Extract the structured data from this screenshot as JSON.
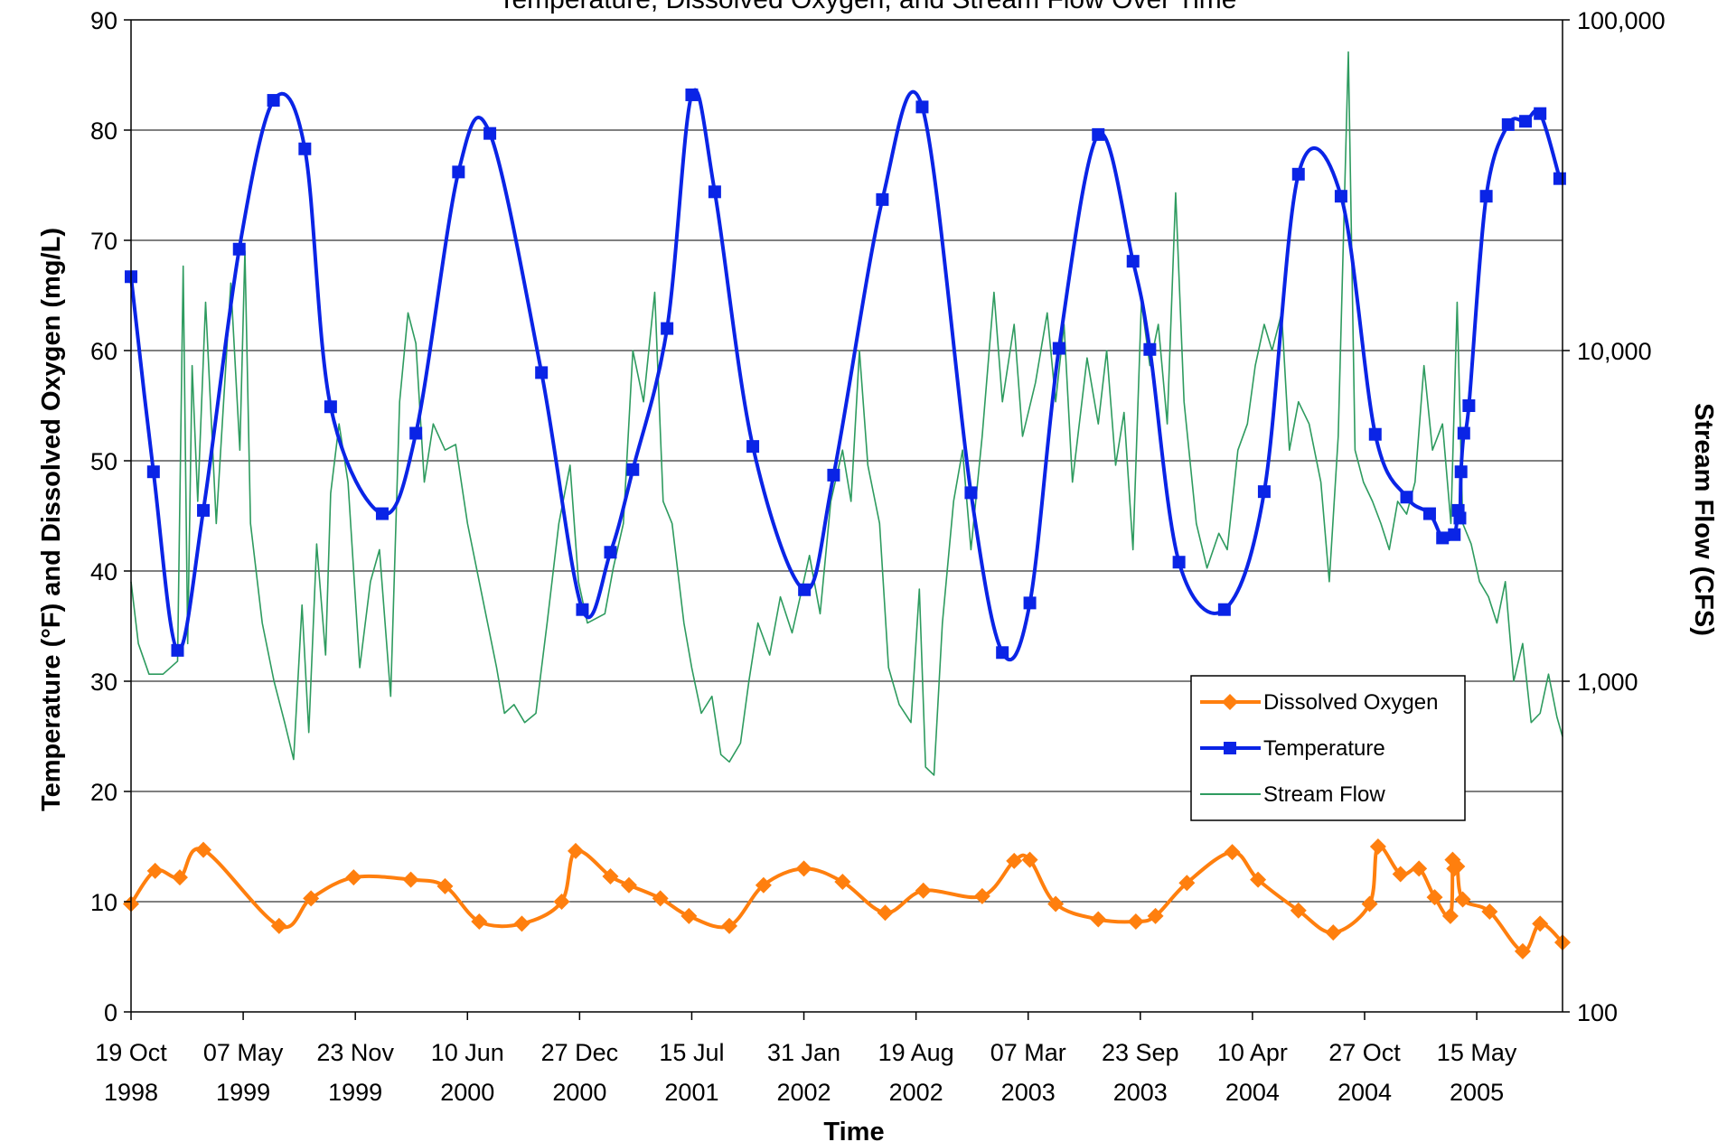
{
  "chart_data": {
    "type": "line",
    "title": "Temperature, Dissolved Oxygen, and Stream Flow Over Time",
    "xlabel": "Time",
    "ylabel_left": "Temperature (°F) and Dissolved Oxygen (mg/L)",
    "ylabel_right": "Stream Flow (CFS)",
    "xlim": [
      "1998-10-19",
      "2005-10-15"
    ],
    "ylim_left": [
      0,
      90
    ],
    "ylim_right": [
      100,
      100000
    ],
    "right_scale": "log",
    "grid": true,
    "legend_position": "lower-right",
    "x_ticks": [
      {
        "date": "1998-10-19",
        "line1": "19 Oct",
        "line2": "1998"
      },
      {
        "date": "1999-05-07",
        "line1": "07 May",
        "line2": "1999"
      },
      {
        "date": "1999-11-23",
        "line1": "23 Nov",
        "line2": "1999"
      },
      {
        "date": "2000-06-10",
        "line1": "10 Jun",
        "line2": "2000"
      },
      {
        "date": "2000-12-27",
        "line1": "27 Dec",
        "line2": "2000"
      },
      {
        "date": "2001-07-15",
        "line1": "15 Jul",
        "line2": "2001"
      },
      {
        "date": "2002-01-31",
        "line1": "31 Jan",
        "line2": "2002"
      },
      {
        "date": "2002-08-19",
        "line1": "19 Aug",
        "line2": "2002"
      },
      {
        "date": "2003-03-07",
        "line1": "07 Mar",
        "line2": "2003"
      },
      {
        "date": "2003-09-23",
        "line1": "23 Sep",
        "line2": "2003"
      },
      {
        "date": "2004-04-10",
        "line1": "10 Apr",
        "line2": "2004"
      },
      {
        "date": "2004-10-27",
        "line1": "27 Oct",
        "line2": "2004"
      },
      {
        "date": "2005-05-15",
        "line1": "15 May",
        "line2": "2005"
      }
    ],
    "y_left_ticks": [
      "0",
      "10",
      "20",
      "30",
      "40",
      "50",
      "60",
      "70",
      "80",
      "90"
    ],
    "y_right_ticks": [
      "100",
      "1,000",
      "10,000",
      "100,000"
    ],
    "series": [
      {
        "name": "Dissolved Oxygen",
        "axis": "left",
        "color": "#ff7f0e",
        "marker": "diamond",
        "points": [
          [
            "1998-10-19",
            9.8
          ],
          [
            "1998-12-01",
            12.8
          ],
          [
            "1999-01-14",
            12.2
          ],
          [
            "1999-02-25",
            14.7
          ],
          [
            "1999-07-10",
            7.8
          ],
          [
            "1999-09-05",
            10.3
          ],
          [
            "1999-11-20",
            12.2
          ],
          [
            "2000-03-01",
            12.0
          ],
          [
            "2000-05-01",
            11.4
          ],
          [
            "2000-07-01",
            8.2
          ],
          [
            "2000-09-15",
            8.0
          ],
          [
            "2000-11-25",
            10.0
          ],
          [
            "2000-12-20",
            14.6
          ],
          [
            "2001-02-20",
            12.3
          ],
          [
            "2001-03-25",
            11.5
          ],
          [
            "2001-05-20",
            10.3
          ],
          [
            "2001-07-10",
            8.7
          ],
          [
            "2001-09-20",
            7.8
          ],
          [
            "2001-11-20",
            11.5
          ],
          [
            "2002-01-31",
            13.0
          ],
          [
            "2002-04-10",
            11.8
          ],
          [
            "2002-06-25",
            9.0
          ],
          [
            "2002-09-01",
            11.0
          ],
          [
            "2002-12-15",
            10.5
          ],
          [
            "2003-02-10",
            13.7
          ],
          [
            "2003-03-10",
            13.8
          ],
          [
            "2003-04-25",
            9.8
          ],
          [
            "2003-07-10",
            8.4
          ],
          [
            "2003-09-15",
            8.2
          ],
          [
            "2003-10-20",
            8.7
          ],
          [
            "2003-12-15",
            11.7
          ],
          [
            "2004-03-05",
            14.5
          ],
          [
            "2004-04-20",
            12.0
          ],
          [
            "2004-07-01",
            9.2
          ],
          [
            "2004-09-01",
            7.2
          ],
          [
            "2004-11-05",
            9.8
          ],
          [
            "2004-11-20",
            15.0
          ],
          [
            "2004-12-30",
            12.5
          ],
          [
            "2005-02-01",
            13.0
          ],
          [
            "2005-03-01",
            10.4
          ],
          [
            "2005-03-29",
            8.7
          ],
          [
            "2005-04-02",
            13.8
          ],
          [
            "2005-04-05",
            13.0
          ],
          [
            "2005-04-10",
            13.2
          ],
          [
            "2005-04-20",
            10.2
          ],
          [
            "2005-06-07",
            9.1
          ],
          [
            "2005-08-05",
            5.5
          ],
          [
            "2005-09-05",
            8.0
          ],
          [
            "2005-10-15",
            6.3
          ]
        ]
      },
      {
        "name": "Temperature",
        "axis": "left",
        "color": "#0a24e6",
        "marker": "square",
        "points": [
          [
            "1998-10-19",
            66.7
          ],
          [
            "1998-11-28",
            49.0
          ],
          [
            "1999-01-10",
            32.8
          ],
          [
            "1999-02-25",
            45.5
          ],
          [
            "1999-04-30",
            69.2
          ],
          [
            "1999-06-30",
            82.7
          ],
          [
            "1999-08-25",
            78.3
          ],
          [
            "1999-10-10",
            54.9
          ],
          [
            "2000-01-10",
            45.2
          ],
          [
            "2000-03-10",
            52.5
          ],
          [
            "2000-05-25",
            76.2
          ],
          [
            "2000-07-20",
            79.7
          ],
          [
            "2000-10-20",
            58.0
          ],
          [
            "2001-01-01",
            36.5
          ],
          [
            "2001-02-20",
            41.7
          ],
          [
            "2001-04-01",
            49.2
          ],
          [
            "2001-06-01",
            62.0
          ],
          [
            "2001-07-15",
            83.2
          ],
          [
            "2001-08-25",
            74.4
          ],
          [
            "2001-11-01",
            51.3
          ],
          [
            "2002-02-01",
            38.3
          ],
          [
            "2002-03-25",
            48.7
          ],
          [
            "2002-06-20",
            73.7
          ],
          [
            "2002-08-30",
            82.1
          ],
          [
            "2002-11-25",
            47.1
          ],
          [
            "2003-01-20",
            32.6
          ],
          [
            "2003-03-10",
            37.1
          ],
          [
            "2003-05-01",
            60.2
          ],
          [
            "2003-07-10",
            79.6
          ],
          [
            "2003-09-10",
            68.1
          ],
          [
            "2003-10-10",
            60.1
          ],
          [
            "2003-12-01",
            40.8
          ],
          [
            "2004-02-20",
            36.5
          ],
          [
            "2004-05-01",
            47.2
          ],
          [
            "2004-07-01",
            76.0
          ],
          [
            "2004-09-15",
            74.0
          ],
          [
            "2004-11-15",
            52.4
          ],
          [
            "2005-01-10",
            46.7
          ],
          [
            "2005-02-20",
            45.2
          ],
          [
            "2005-03-15",
            43.0
          ],
          [
            "2005-04-05",
            43.3
          ],
          [
            "2005-04-12",
            45.5
          ],
          [
            "2005-04-15",
            44.8
          ],
          [
            "2005-04-17",
            49.0
          ],
          [
            "2005-04-22",
            52.5
          ],
          [
            "2005-05-01",
            55.0
          ],
          [
            "2005-06-01",
            74.0
          ],
          [
            "2005-07-10",
            80.5
          ],
          [
            "2005-08-10",
            80.8
          ],
          [
            "2005-09-05",
            81.5
          ],
          [
            "2005-10-10",
            75.6
          ]
        ]
      },
      {
        "name": "Stream Flow",
        "axis": "right",
        "color": "#2e9b5f",
        "points": [
          [
            "1998-10-19",
            2000
          ],
          [
            "1998-11-01",
            1300
          ],
          [
            "1998-11-20",
            1050
          ],
          [
            "1998-12-15",
            1050
          ],
          [
            "1999-01-10",
            1150
          ],
          [
            "1999-01-20",
            18000
          ],
          [
            "1999-01-28",
            1300
          ],
          [
            "1999-02-05",
            9000
          ],
          [
            "1999-02-15",
            3500
          ],
          [
            "1999-03-01",
            14000
          ],
          [
            "1999-03-20",
            3000
          ],
          [
            "1999-04-15",
            16000
          ],
          [
            "1999-05-01",
            5000
          ],
          [
            "1999-05-10",
            20000
          ],
          [
            "1999-05-20",
            3000
          ],
          [
            "1999-06-10",
            1500
          ],
          [
            "1999-07-01",
            1000
          ],
          [
            "1999-07-20",
            750
          ],
          [
            "1999-08-05",
            580
          ],
          [
            "1999-08-20",
            1700
          ],
          [
            "1999-09-01",
            700
          ],
          [
            "1999-09-15",
            2600
          ],
          [
            "1999-10-01",
            1200
          ],
          [
            "1999-10-10",
            3700
          ],
          [
            "1999-10-25",
            6000
          ],
          [
            "1999-11-10",
            4000
          ],
          [
            "1999-12-01",
            1100
          ],
          [
            "1999-12-20",
            2000
          ],
          [
            "2000-01-05",
            2500
          ],
          [
            "2000-01-25",
            900
          ],
          [
            "2000-02-10",
            7000
          ],
          [
            "2000-02-25",
            13000
          ],
          [
            "2000-03-10",
            10500
          ],
          [
            "2000-03-25",
            4000
          ],
          [
            "2000-04-10",
            6000
          ],
          [
            "2000-05-01",
            5000
          ],
          [
            "2000-05-20",
            5200
          ],
          [
            "2000-06-10",
            3000
          ],
          [
            "2000-07-01",
            2000
          ],
          [
            "2000-08-01",
            1100
          ],
          [
            "2000-08-15",
            800
          ],
          [
            "2000-09-01",
            850
          ],
          [
            "2000-09-20",
            750
          ],
          [
            "2000-10-10",
            800
          ],
          [
            "2000-10-30",
            1500
          ],
          [
            "2000-11-20",
            3000
          ],
          [
            "2000-12-10",
            4500
          ],
          [
            "2000-12-25",
            2000
          ],
          [
            "2001-01-10",
            1500
          ],
          [
            "2001-02-10",
            1600
          ],
          [
            "2001-02-25",
            2200
          ],
          [
            "2001-03-15",
            3000
          ],
          [
            "2001-04-01",
            10000
          ],
          [
            "2001-04-20",
            7000
          ],
          [
            "2001-05-10",
            15000
          ],
          [
            "2001-05-25",
            3500
          ],
          [
            "2001-06-10",
            3000
          ],
          [
            "2001-07-01",
            1500
          ],
          [
            "2001-07-15",
            1100
          ],
          [
            "2001-08-01",
            800
          ],
          [
            "2001-08-20",
            900
          ],
          [
            "2001-09-05",
            600
          ],
          [
            "2001-09-20",
            570
          ],
          [
            "2001-10-10",
            650
          ],
          [
            "2001-10-25",
            1000
          ],
          [
            "2001-11-10",
            1500
          ],
          [
            "2001-12-01",
            1200
          ],
          [
            "2001-12-20",
            1800
          ],
          [
            "2002-01-10",
            1400
          ],
          [
            "2002-02-10",
            2400
          ],
          [
            "2002-03-01",
            1600
          ],
          [
            "2002-03-20",
            3500
          ],
          [
            "2002-04-10",
            5000
          ],
          [
            "2002-04-25",
            3500
          ],
          [
            "2002-05-10",
            10000
          ],
          [
            "2002-05-25",
            4500
          ],
          [
            "2002-06-15",
            3000
          ],
          [
            "2002-07-01",
            1100
          ],
          [
            "2002-07-20",
            850
          ],
          [
            "2002-08-10",
            750
          ],
          [
            "2002-08-25",
            1900
          ],
          [
            "2002-09-05",
            550
          ],
          [
            "2002-09-20",
            520
          ],
          [
            "2002-10-05",
            1500
          ],
          [
            "2002-10-25",
            3500
          ],
          [
            "2002-11-10",
            5000
          ],
          [
            "2002-11-25",
            2500
          ],
          [
            "2002-12-15",
            5500
          ],
          [
            "2003-01-05",
            15000
          ],
          [
            "2003-01-20",
            7000
          ],
          [
            "2003-02-10",
            12000
          ],
          [
            "2003-02-25",
            5500
          ],
          [
            "2003-03-20",
            8000
          ],
          [
            "2003-04-10",
            13000
          ],
          [
            "2003-04-25",
            7000
          ],
          [
            "2003-05-10",
            12000
          ],
          [
            "2003-05-25",
            4000
          ],
          [
            "2003-06-20",
            9500
          ],
          [
            "2003-07-10",
            6000
          ],
          [
            "2003-07-25",
            10000
          ],
          [
            "2003-08-10",
            4500
          ],
          [
            "2003-08-25",
            6500
          ],
          [
            "2003-09-10",
            2500
          ],
          [
            "2003-09-25",
            14000
          ],
          [
            "2003-10-10",
            9000
          ],
          [
            "2003-10-25",
            12000
          ],
          [
            "2003-11-10",
            6000
          ],
          [
            "2003-11-25",
            30000
          ],
          [
            "2003-12-10",
            7000
          ],
          [
            "2004-01-01",
            3000
          ],
          [
            "2004-01-20",
            2200
          ],
          [
            "2004-02-10",
            2800
          ],
          [
            "2004-02-25",
            2500
          ],
          [
            "2004-03-15",
            5000
          ],
          [
            "2004-04-01",
            6000
          ],
          [
            "2004-04-15",
            9000
          ],
          [
            "2004-05-01",
            12000
          ],
          [
            "2004-05-15",
            10000
          ],
          [
            "2004-06-01",
            13000
          ],
          [
            "2004-06-15",
            5000
          ],
          [
            "2004-07-01",
            7000
          ],
          [
            "2004-07-20",
            6000
          ],
          [
            "2004-08-10",
            4000
          ],
          [
            "2004-08-25",
            2000
          ],
          [
            "2004-09-10",
            5500
          ],
          [
            "2004-09-28",
            80000
          ],
          [
            "2004-10-10",
            5000
          ],
          [
            "2004-10-25",
            4000
          ],
          [
            "2004-11-10",
            3500
          ],
          [
            "2004-11-25",
            3000
          ],
          [
            "2004-12-10",
            2500
          ],
          [
            "2004-12-25",
            3500
          ],
          [
            "2005-01-10",
            3200
          ],
          [
            "2005-01-25",
            4000
          ],
          [
            "2005-02-10",
            9000
          ],
          [
            "2005-02-25",
            5000
          ],
          [
            "2005-03-15",
            6000
          ],
          [
            "2005-03-30",
            3000
          ],
          [
            "2005-04-10",
            14000
          ],
          [
            "2005-04-20",
            3000
          ],
          [
            "2005-05-05",
            2600
          ],
          [
            "2005-05-20",
            2000
          ],
          [
            "2005-06-05",
            1800
          ],
          [
            "2005-06-20",
            1500
          ],
          [
            "2005-07-05",
            2000
          ],
          [
            "2005-07-20",
            1000
          ],
          [
            "2005-08-05",
            1300
          ],
          [
            "2005-08-20",
            750
          ],
          [
            "2005-09-05",
            800
          ],
          [
            "2005-09-20",
            1050
          ],
          [
            "2005-10-05",
            780
          ],
          [
            "2005-10-15",
            680
          ]
        ]
      }
    ]
  }
}
